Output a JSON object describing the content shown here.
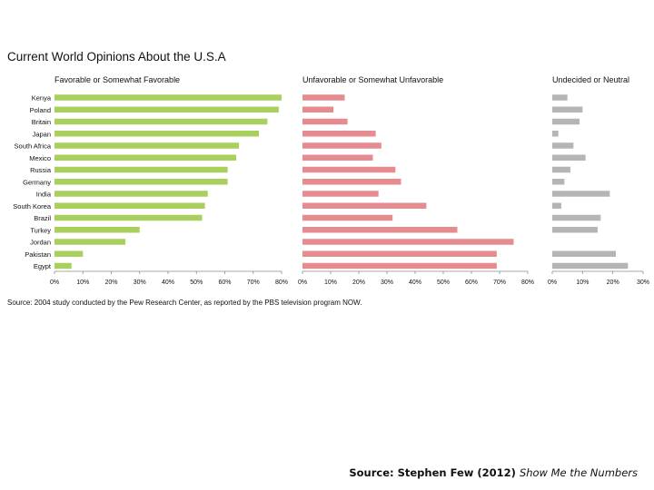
{
  "chart_data": {
    "type": "bar",
    "title": "Current World Opinions About the U.S.A",
    "categories": [
      "Kenya",
      "Poland",
      "Britain",
      "Japan",
      "South Africa",
      "Mexico",
      "Russia",
      "Germany",
      "India",
      "South Korea",
      "Brazil",
      "Turkey",
      "Jordan",
      "Pakistan",
      "Egypt"
    ],
    "series": [
      {
        "name": "Favorable or Somewhat Favorable",
        "color": "#a9cf5e",
        "values": [
          80,
          79,
          75,
          72,
          65,
          64,
          61,
          61,
          54,
          53,
          52,
          30,
          25,
          10,
          6
        ],
        "xlim": [
          0,
          80
        ],
        "ticks": [
          "0%",
          "10%",
          "20%",
          "30%",
          "40%",
          "50%",
          "60%",
          "70%",
          "80%"
        ]
      },
      {
        "name": "Unfavorable or Somewhat Unfavorable",
        "color": "#e58c90",
        "values": [
          15,
          11,
          16,
          26,
          28,
          25,
          33,
          35,
          27,
          44,
          32,
          55,
          75,
          69,
          69
        ],
        "xlim": [
          0,
          80
        ],
        "ticks": [
          "0%",
          "10%",
          "20%",
          "30%",
          "40%",
          "50%",
          "60%",
          "70%",
          "80%"
        ]
      },
      {
        "name": "Undecided or Neutral",
        "color": "#b5b5b5",
        "values": [
          5,
          10,
          9,
          2,
          7,
          11,
          6,
          4,
          19,
          3,
          16,
          15,
          0,
          21,
          25
        ],
        "xlim": [
          0,
          30
        ],
        "ticks": [
          "0%",
          "10%",
          "20%",
          "30%"
        ]
      }
    ],
    "source_note": "Source: 2004 study conducted by the Pew Research Center, as reported by the PBS television program NOW."
  },
  "caption": {
    "prefix": "Source: Stephen Few (2012) ",
    "book_title": "Show Me the Numbers"
  }
}
